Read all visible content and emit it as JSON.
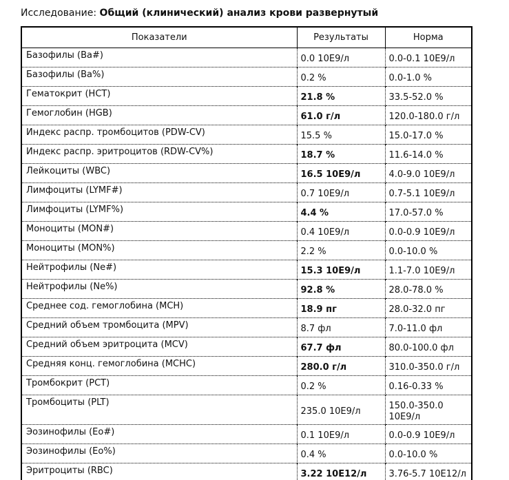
{
  "page": {
    "study_label": "Исследование:",
    "study_name": "Общий (клинический) анализ крови развернутый"
  },
  "table": {
    "headers": [
      "Показатели",
      "Результаты",
      "Норма"
    ],
    "rows": [
      {
        "name": "Базофилы (Ba#)",
        "result": "0.0 10E9/л",
        "norm": "0.0-0.1 10E9/л",
        "abnormal": false
      },
      {
        "name": "Базофилы (Ba%)",
        "result": "0.2 %",
        "norm": "0.0-1.0 %",
        "abnormal": false
      },
      {
        "name": "Гематокрит (HCT)",
        "result": "21.8 %",
        "norm": "33.5-52.0 %",
        "abnormal": true
      },
      {
        "name": "Гемоглобин (HGB)",
        "result": "61.0 г/л",
        "norm": "120.0-180.0 г/л",
        "abnormal": true
      },
      {
        "name": "Индекс распр. тромбоцитов (PDW-CV)",
        "result": "15.5 %",
        "norm": "15.0-17.0 %",
        "abnormal": false
      },
      {
        "name": "Индекс распр. эритроцитов (RDW-CV%)",
        "result": "18.7 %",
        "norm": "11.6-14.0 %",
        "abnormal": true
      },
      {
        "name": "Лейкоциты (WBC)",
        "result": "16.5 10E9/л",
        "norm": "4.0-9.0 10E9/л",
        "abnormal": true
      },
      {
        "name": "Лимфоциты (LYMF#)",
        "result": "0.7 10E9/л",
        "norm": "0.7-5.1 10E9/л",
        "abnormal": false
      },
      {
        "name": "Лимфоциты (LYMF%)",
        "result": "4.4 %",
        "norm": "17.0-57.0 %",
        "abnormal": true
      },
      {
        "name": "Моноциты (MON#)",
        "result": "0.4 10E9/л",
        "norm": "0.0-0.9 10E9/л",
        "abnormal": false
      },
      {
        "name": "Моноциты (MON%)",
        "result": "2.2 %",
        "norm": "0.0-10.0 %",
        "abnormal": false
      },
      {
        "name": "Нейтрофилы (Ne#)",
        "result": "15.3 10E9/л",
        "norm": "1.1-7.0 10E9/л",
        "abnormal": true
      },
      {
        "name": "Нейтрофилы (Ne%)",
        "result": "92.8 %",
        "norm": "28.0-78.0 %",
        "abnormal": true
      },
      {
        "name": "Среднее сод. гемоглобина (MCH)",
        "result": "18.9 пг",
        "norm": "28.0-32.0 пг",
        "abnormal": true
      },
      {
        "name": "Средний объем тромбоцита (MPV)",
        "result": "8.7 фл",
        "norm": "7.0-11.0 фл",
        "abnormal": false
      },
      {
        "name": "Средний объем эритроцита (MCV)",
        "result": "67.7 фл",
        "norm": "80.0-100.0 фл",
        "abnormal": true
      },
      {
        "name": "Средняя конц. гемоглобина (MCHC)",
        "result": "280.0 г/л",
        "norm": "310.0-350.0 г/л",
        "abnormal": true
      },
      {
        "name": "Тромбокрит (PCT)",
        "result": "0.2 %",
        "norm": "0.16-0.33 %",
        "abnormal": false
      },
      {
        "name": "Тромбоциты (PLT)",
        "result": "235.0 10E9/л",
        "norm": "150.0-350.0 10E9/л",
        "abnormal": false
      },
      {
        "name": "Эозинофилы (Eo#)",
        "result": "0.1 10E9/л",
        "norm": "0.0-0.9 10E9/л",
        "abnormal": false
      },
      {
        "name": "Эозинофилы (Eo%)",
        "result": "0.4 %",
        "norm": "0.0-10.0 %",
        "abnormal": false
      },
      {
        "name": "Эритроциты (RBC)",
        "result": "3.22 10E12/л",
        "norm": "3.76-5.7 10E12/л",
        "abnormal": true
      }
    ]
  }
}
